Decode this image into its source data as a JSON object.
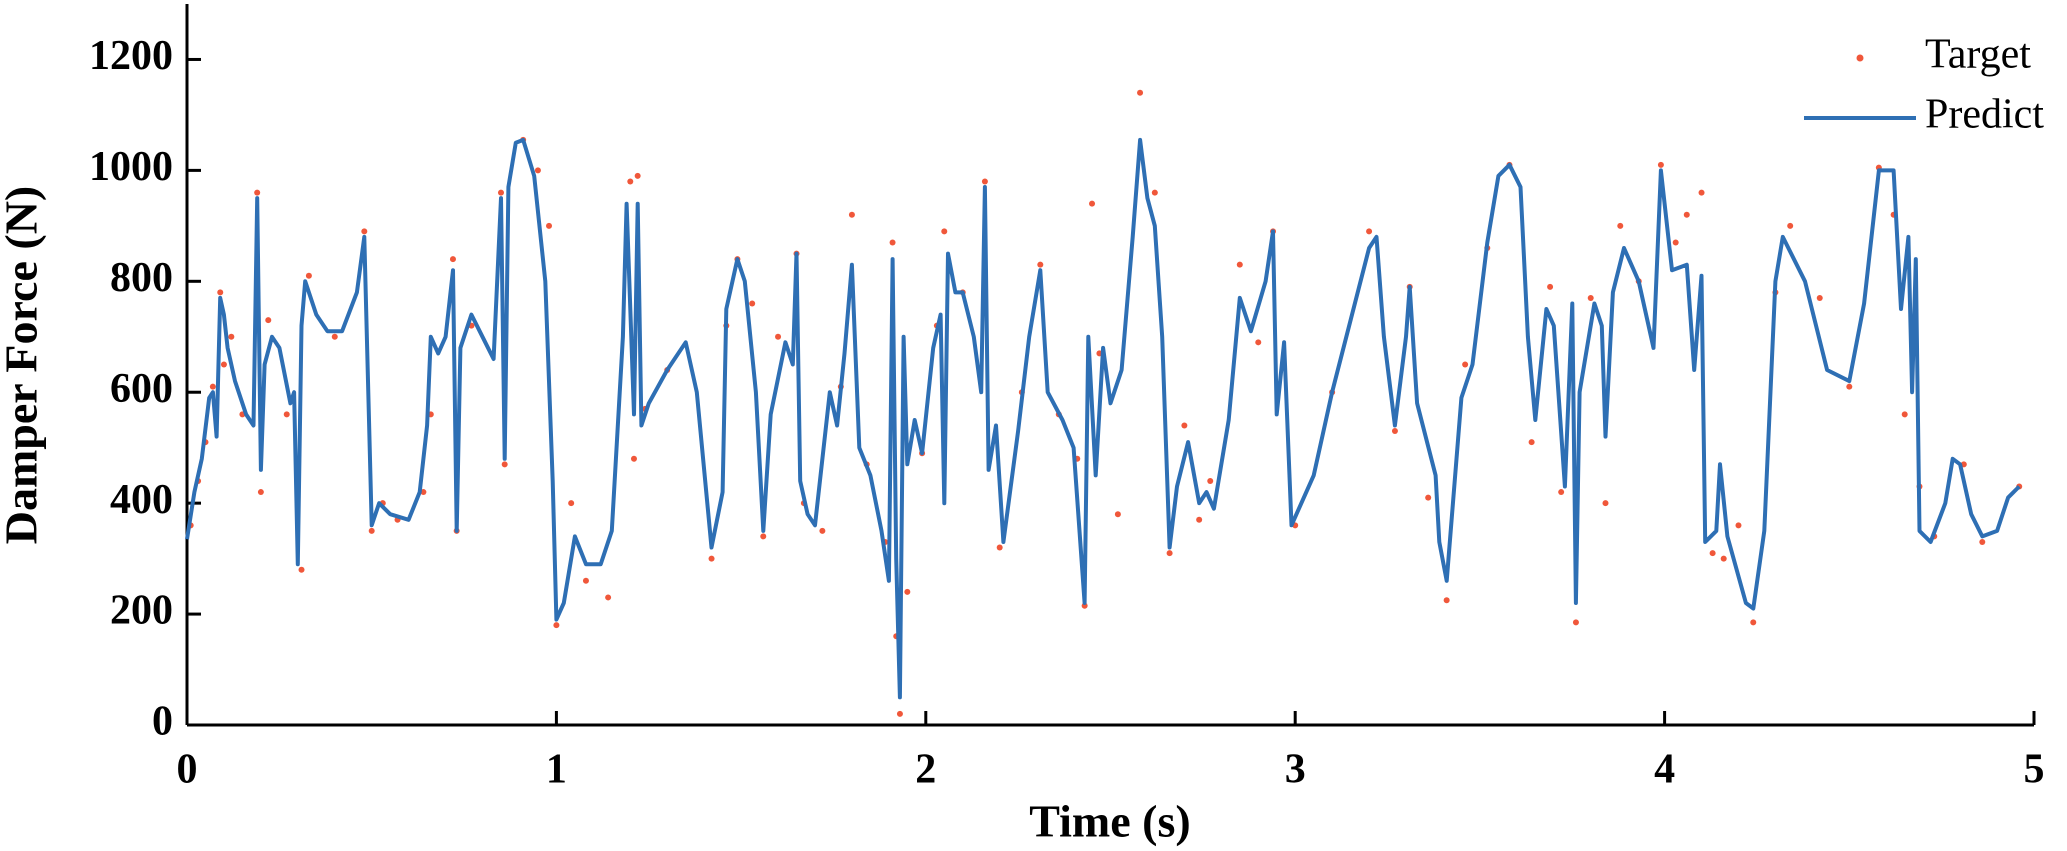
{
  "chart_data": {
    "type": "line",
    "xlabel": "Time (s)",
    "ylabel": "Damper Force (N)",
    "xlim": [
      0,
      5
    ],
    "ylim": [
      0,
      1300
    ],
    "xticks": [
      0,
      1,
      2,
      3,
      4,
      5
    ],
    "yticks": [
      0,
      200,
      400,
      600,
      800,
      1000,
      1200
    ],
    "legend": "upper right",
    "series": [
      {
        "name": "Target",
        "kind": "scatter",
        "color": "#f0573a",
        "x": [
          0.01,
          0.03,
          0.05,
          0.07,
          0.09,
          0.1,
          0.12,
          0.15,
          0.19,
          0.2,
          0.22,
          0.27,
          0.31,
          0.33,
          0.4,
          0.48,
          0.5,
          0.53,
          0.57,
          0.64,
          0.66,
          0.72,
          0.73,
          0.77,
          0.85,
          0.86,
          0.91,
          0.95,
          0.98,
          1.0,
          1.04,
          1.08,
          1.14,
          1.2,
          1.21,
          1.22,
          1.24,
          1.3,
          1.42,
          1.46,
          1.49,
          1.53,
          1.56,
          1.6,
          1.65,
          1.67,
          1.72,
          1.77,
          1.8,
          1.84,
          1.89,
          1.91,
          1.92,
          1.93,
          1.95,
          1.99,
          2.03,
          2.05,
          2.1,
          2.16,
          2.2,
          2.26,
          2.31,
          2.36,
          2.41,
          2.43,
          2.45,
          2.47,
          2.52,
          2.58,
          2.62,
          2.66,
          2.7,
          2.74,
          2.77,
          2.85,
          2.9,
          2.94,
          3.0,
          3.1,
          3.2,
          3.27,
          3.31,
          3.36,
          3.41,
          3.46,
          3.52,
          3.58,
          3.64,
          3.69,
          3.72,
          3.76,
          3.8,
          3.84,
          3.88,
          3.93,
          3.99,
          4.03,
          4.06,
          4.1,
          4.13,
          4.16,
          4.2,
          4.24,
          4.3,
          4.34,
          4.42,
          4.5,
          4.58,
          4.62,
          4.65,
          4.69,
          4.73,
          4.81,
          4.86,
          4.96
        ],
        "values": [
          360,
          440,
          510,
          610,
          780,
          650,
          700,
          560,
          960,
          420,
          730,
          560,
          280,
          810,
          700,
          890,
          350,
          400,
          370,
          420,
          560,
          840,
          350,
          720,
          960,
          470,
          1055,
          1000,
          900,
          180,
          400,
          260,
          230,
          980,
          480,
          990,
          570,
          640,
          300,
          720,
          840,
          760,
          340,
          700,
          850,
          400,
          350,
          610,
          920,
          470,
          330,
          870,
          160,
          20,
          240,
          490,
          720,
          890,
          780,
          980,
          320,
          600,
          830,
          560,
          480,
          215,
          940,
          670,
          380,
          1140,
          960,
          310,
          540,
          370,
          440,
          830,
          690,
          890,
          360,
          600,
          890,
          530,
          790,
          410,
          225,
          650,
          860,
          1010,
          510,
          790,
          420,
          185,
          770,
          400,
          900,
          800,
          1010,
          870,
          920,
          960,
          310,
          300,
          360,
          185,
          780,
          900,
          770,
          610,
          1005,
          920,
          560,
          430,
          340,
          470,
          330,
          430
        ]
      },
      {
        "name": "Predict",
        "color": "#2e6fb4",
        "x": [
          0,
          0.02,
          0.04,
          0.06,
          0.07,
          0.08,
          0.09,
          0.1,
          0.11,
          0.13,
          0.16,
          0.18,
          0.19,
          0.2,
          0.21,
          0.23,
          0.25,
          0.28,
          0.29,
          0.3,
          0.31,
          0.32,
          0.35,
          0.38,
          0.42,
          0.46,
          0.48,
          0.5,
          0.52,
          0.55,
          0.6,
          0.63,
          0.65,
          0.66,
          0.68,
          0.7,
          0.72,
          0.73,
          0.74,
          0.77,
          0.8,
          0.83,
          0.85,
          0.86,
          0.87,
          0.89,
          0.91,
          0.94,
          0.97,
          0.99,
          1.0,
          1.02,
          1.05,
          1.08,
          1.12,
          1.15,
          1.18,
          1.19,
          1.21,
          1.22,
          1.23,
          1.25,
          1.3,
          1.35,
          1.38,
          1.42,
          1.45,
          1.46,
          1.49,
          1.51,
          1.54,
          1.56,
          1.58,
          1.62,
          1.64,
          1.65,
          1.66,
          1.68,
          1.7,
          1.74,
          1.76,
          1.78,
          1.8,
          1.82,
          1.85,
          1.88,
          1.9,
          1.91,
          1.92,
          1.93,
          1.94,
          1.95,
          1.97,
          1.99,
          2.02,
          2.04,
          2.05,
          2.06,
          2.08,
          2.1,
          2.13,
          2.15,
          2.16,
          2.17,
          2.19,
          2.21,
          2.25,
          2.28,
          2.31,
          2.33,
          2.37,
          2.4,
          2.43,
          2.44,
          2.46,
          2.48,
          2.5,
          2.53,
          2.56,
          2.58,
          2.6,
          2.62,
          2.64,
          2.66,
          2.68,
          2.71,
          2.74,
          2.76,
          2.78,
          2.82,
          2.85,
          2.88,
          2.92,
          2.94,
          2.95,
          2.97,
          2.99,
          3.05,
          3.1,
          3.15,
          3.2,
          3.22,
          3.24,
          3.27,
          3.3,
          3.31,
          3.33,
          3.38,
          3.39,
          3.41,
          3.45,
          3.48,
          3.52,
          3.55,
          3.58,
          3.61,
          3.63,
          3.65,
          3.68,
          3.7,
          3.73,
          3.75,
          3.76,
          3.77,
          3.81,
          3.83,
          3.84,
          3.86,
          3.89,
          3.93,
          3.97,
          3.99,
          4.02,
          4.06,
          4.08,
          4.1,
          4.11,
          4.14,
          4.15,
          4.17,
          4.22,
          4.24,
          4.27,
          4.3,
          4.32,
          4.38,
          4.44,
          4.5,
          4.54,
          4.58,
          4.62,
          4.64,
          4.66,
          4.67,
          4.68,
          4.69,
          4.72,
          4.76,
          4.78,
          4.8,
          4.83,
          4.86,
          4.9,
          4.93,
          4.96
        ],
        "values": [
          335,
          420,
          480,
          590,
          600,
          520,
          770,
          740,
          680,
          620,
          560,
          540,
          950,
          460,
          650,
          700,
          680,
          580,
          600,
          290,
          720,
          800,
          740,
          710,
          710,
          780,
          880,
          360,
          400,
          380,
          370,
          420,
          540,
          700,
          670,
          700,
          820,
          350,
          680,
          740,
          700,
          660,
          950,
          480,
          970,
          1050,
          1055,
          990,
          800,
          440,
          190,
          220,
          340,
          290,
          290,
          350,
          700,
          940,
          560,
          940,
          540,
          580,
          640,
          690,
          600,
          320,
          420,
          750,
          840,
          800,
          600,
          350,
          560,
          690,
          650,
          850,
          440,
          380,
          360,
          600,
          540,
          670,
          830,
          500,
          450,
          350,
          260,
          840,
          300,
          50,
          700,
          470,
          550,
          490,
          680,
          740,
          400,
          850,
          780,
          780,
          700,
          600,
          970,
          460,
          540,
          330,
          530,
          700,
          820,
          600,
          550,
          500,
          220,
          700,
          450,
          680,
          580,
          640,
          880,
          1055,
          950,
          900,
          700,
          320,
          430,
          510,
          400,
          420,
          390,
          550,
          770,
          710,
          800,
          890,
          560,
          690,
          360,
          450,
          600,
          730,
          860,
          880,
          700,
          540,
          700,
          790,
          580,
          450,
          330,
          260,
          590,
          650,
          870,
          990,
          1010,
          970,
          700,
          550,
          750,
          720,
          430,
          760,
          220,
          600,
          760,
          720,
          520,
          780,
          860,
          800,
          680,
          1000,
          820,
          830,
          640,
          810,
          330,
          350,
          470,
          340,
          220,
          210,
          350,
          800,
          880,
          800,
          640,
          620,
          760,
          1000,
          1000,
          750,
          880,
          600,
          840,
          350,
          330,
          400,
          480,
          470,
          380,
          340,
          350,
          410,
          430
        ]
      }
    ]
  }
}
